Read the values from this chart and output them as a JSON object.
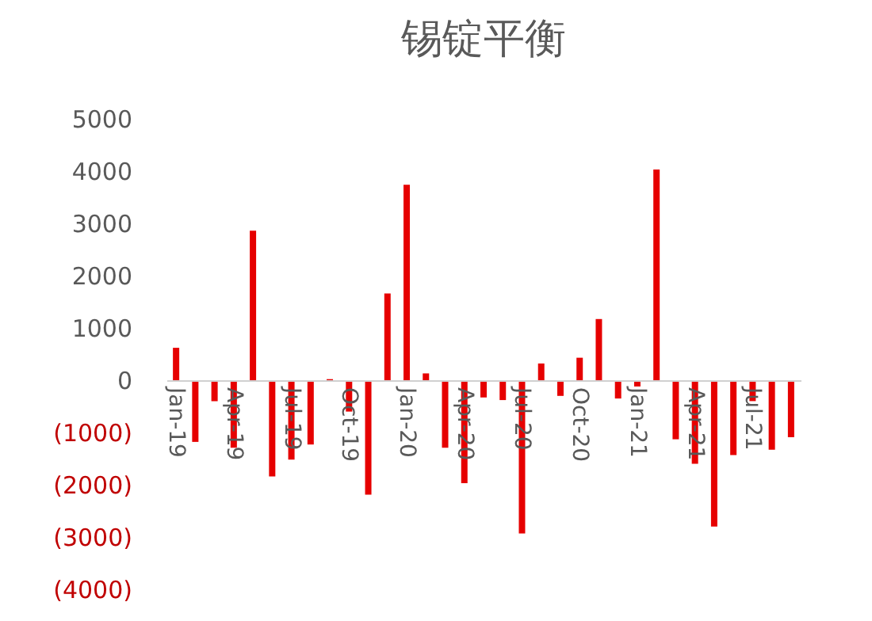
{
  "chart_data": {
    "type": "bar",
    "title": "锡锭平衡",
    "categories": [
      "Jan-19",
      null,
      null,
      "Apr-19",
      null,
      null,
      "Jul-19",
      null,
      null,
      "Oct-19",
      null,
      null,
      "Jan-20",
      null,
      null,
      "Apr-20",
      null,
      null,
      "Jul-20",
      null,
      null,
      "Oct-20",
      null,
      null,
      "Jan-21",
      null,
      null,
      "Apr-21",
      null,
      null,
      "Jul-21",
      null,
      null
    ],
    "values": [
      620,
      -1180,
      -400,
      -1290,
      2860,
      -1840,
      -1520,
      -1230,
      20,
      -600,
      -2190,
      1660,
      3740,
      130,
      -1290,
      -1970,
      -330,
      -380,
      -2930,
      320,
      -300,
      430,
      1170,
      -350,
      -120,
      4030,
      -1130,
      -1600,
      -2800,
      -1430,
      -400,
      -1330,
      -1090
    ],
    "color": "#e60000",
    "ylim": [
      -4000,
      5000
    ],
    "yticks": [
      {
        "value": -4000,
        "label": "(4000)"
      },
      {
        "value": -3000,
        "label": "(3000)"
      },
      {
        "value": -2000,
        "label": "(2000)"
      },
      {
        "value": -1000,
        "label": "(1000)"
      },
      0,
      1000,
      2000,
      3000,
      4000,
      5000
    ],
    "grid": false
  }
}
